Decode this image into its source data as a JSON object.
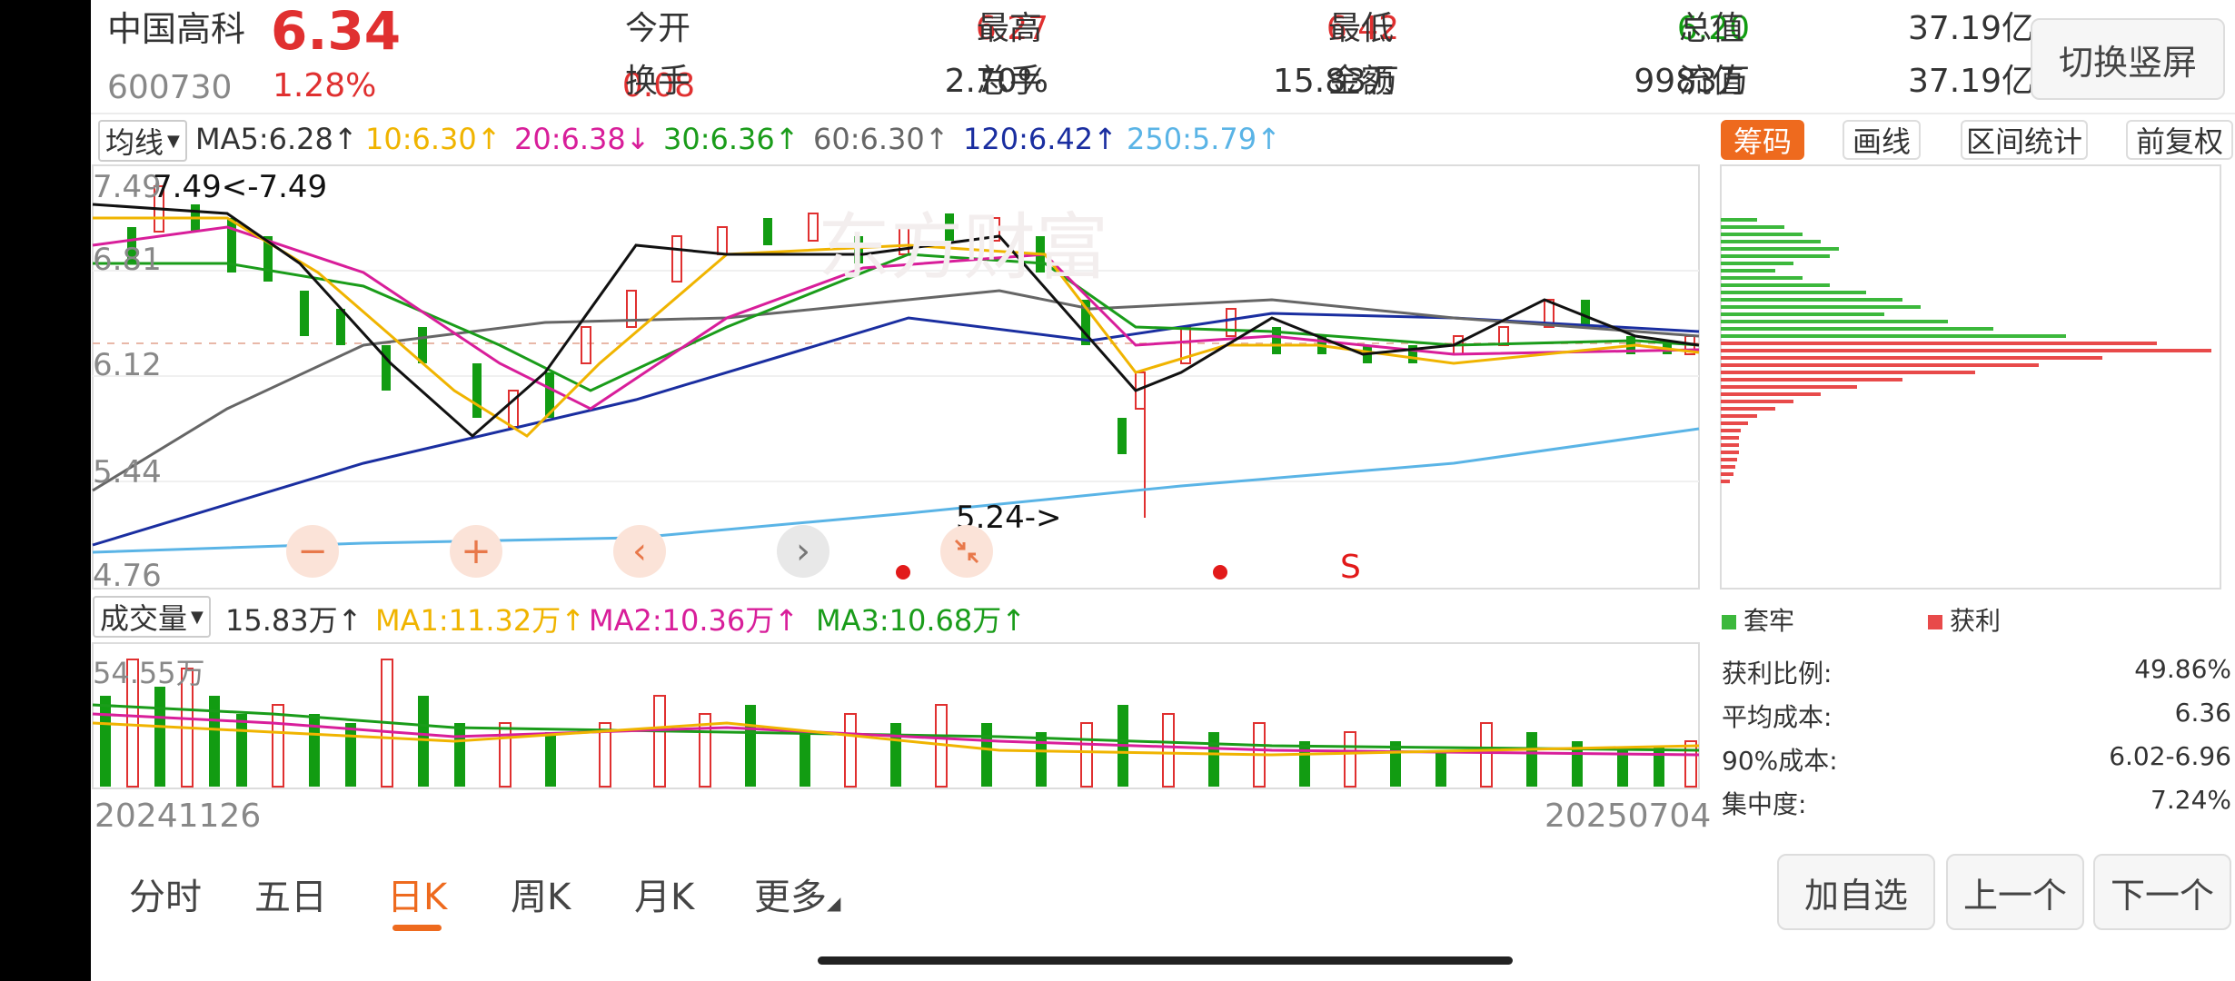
{
  "header": {
    "name": "中国高科",
    "price": "6.34",
    "code": "600730",
    "change_pct": "1.28%",
    "change_amt": "0.08",
    "fields": [
      {
        "label": "今开",
        "value": "6.27",
        "color": "red"
      },
      {
        "label": "最高",
        "value": "6.42",
        "color": "red"
      },
      {
        "label": "最低",
        "value": "6.20",
        "color": "green"
      },
      {
        "label": "总值",
        "value": "37.19亿",
        "color": "dark"
      },
      {
        "label": "换手",
        "value": "2.70%",
        "color": "dark"
      },
      {
        "label": "总手",
        "value": "15.83万",
        "color": "dark"
      },
      {
        "label": "金额",
        "value": "9983万",
        "color": "dark"
      },
      {
        "label": "流值",
        "value": "37.19亿",
        "color": "dark"
      }
    ],
    "switch_button": "切换竖屏"
  },
  "ma_bar": {
    "dropdown": "均线",
    "items": [
      {
        "text": "MA5:6.28↑",
        "color": "#333333"
      },
      {
        "text": "10:6.30↑",
        "color": "#f0b400"
      },
      {
        "text": "20:6.38↓",
        "color": "#d81e9a"
      },
      {
        "text": "30:6.36↑",
        "color": "#1a9c1a"
      },
      {
        "text": "60:6.30↑",
        "color": "#666666"
      },
      {
        "text": "120:6.42↑",
        "color": "#1a2ea0"
      },
      {
        "text": "250:5.79↑",
        "color": "#5ab4e6"
      }
    ]
  },
  "chip_tabs": [
    "筹码",
    "画线",
    "区间统计",
    "前复权"
  ],
  "price_axis": [
    "7.49",
    "6.81",
    "6.12",
    "5.44",
    "4.76"
  ],
  "annotations": {
    "high": "7.49<-7.49",
    "low": "5.24->"
  },
  "chart_controls": [
    "−",
    "+",
    "‹",
    "›"
  ],
  "signal_letter": "S",
  "watermark": "东方财富",
  "volume_bar": {
    "dropdown": "成交量",
    "items": [
      {
        "text": "15.83万↑",
        "color": "#333333"
      },
      {
        "text": "MA1:11.32万↑",
        "color": "#f0b400"
      },
      {
        "text": "MA2:10.36万↑",
        "color": "#d81e9a"
      },
      {
        "text": "MA3:10.68万↑",
        "color": "#1a9c1a"
      }
    ],
    "max_label": "54.55万"
  },
  "dates": {
    "start": "20241126",
    "end": "20250704"
  },
  "chips_legend": {
    "trapped": "套牢",
    "profit": "获利"
  },
  "stats": [
    {
      "label": "获利比例:",
      "value": "49.86%"
    },
    {
      "label": "平均成本:",
      "value": "6.36"
    },
    {
      "label": "90%成本:",
      "value": "6.02-6.96"
    },
    {
      "label": "集中度:",
      "value": "7.24%"
    }
  ],
  "period_tabs": [
    "分时",
    "五日",
    "日K",
    "周K",
    "月K",
    "更多"
  ],
  "active_period": "日K",
  "bottom_buttons": [
    "加自选",
    "上一个",
    "下一个"
  ],
  "colors": {
    "up": "#e03030",
    "down": "#129c12",
    "accent": "#ee6a1e"
  },
  "chart_data": {
    "type": "candlestick",
    "x": [
      "20241126",
      "20250704"
    ],
    "ylim": [
      4.76,
      7.49
    ],
    "high": 7.49,
    "low": 5.24,
    "last_close": 6.34
  }
}
